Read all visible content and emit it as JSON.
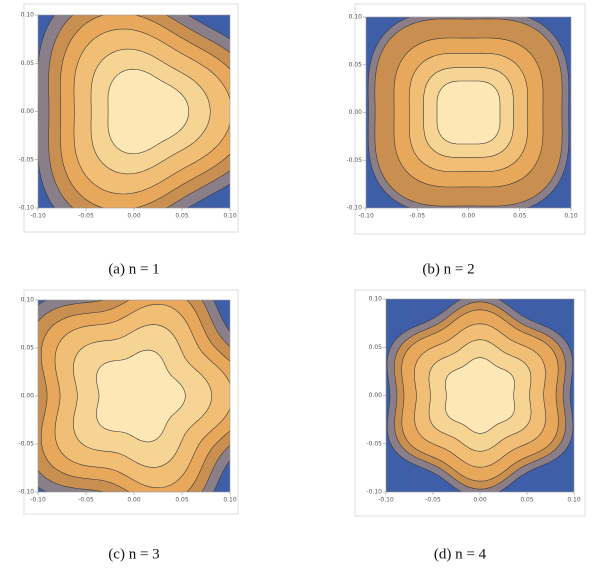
{
  "chart_data": [
    {
      "type": "contour",
      "caption": "(a) n = 1",
      "xlim": [
        -0.1,
        0.1
      ],
      "ylim": [
        -0.1,
        0.1
      ],
      "xticks": [
        {
          "value": -0.1,
          "label": "-0.10"
        },
        {
          "value": -0.05,
          "label": "-0.05"
        },
        {
          "value": 0,
          "label": "0.00"
        },
        {
          "value": 0.05,
          "label": "0.05"
        },
        {
          "value": 0.1,
          "label": "0.10"
        }
      ],
      "yticks": [
        {
          "value": -0.1,
          "label": "-0.10"
        },
        {
          "value": -0.05,
          "label": "-0.05"
        },
        {
          "value": 0,
          "label": "0.00"
        },
        {
          "value": 0.05,
          "label": "0.05"
        },
        {
          "value": 0.1,
          "label": "0.10"
        }
      ]
    },
    {
      "type": "contour",
      "caption": "(b) n = 2",
      "xlim": [
        -0.1,
        0.1
      ],
      "ylim": [
        -0.1,
        0.1
      ],
      "xticks": [
        {
          "value": -0.1,
          "label": "-0.10"
        },
        {
          "value": -0.05,
          "label": "-0.05"
        },
        {
          "value": 0,
          "label": "0.00"
        },
        {
          "value": 0.05,
          "label": "0.05"
        },
        {
          "value": 0.1,
          "label": "0.10"
        }
      ],
      "yticks": [
        {
          "value": -0.1,
          "label": "-0.10"
        },
        {
          "value": -0.05,
          "label": "-0.05"
        },
        {
          "value": 0,
          "label": "0.00"
        },
        {
          "value": 0.05,
          "label": "0.05"
        },
        {
          "value": 0.1,
          "label": "0.10"
        }
      ]
    },
    {
      "type": "contour",
      "caption": "(c) n = 3",
      "xlim": [
        -0.1,
        0.1
      ],
      "ylim": [
        -0.1,
        0.1
      ],
      "xticks": [
        {
          "value": -0.1,
          "label": "-0.10"
        },
        {
          "value": -0.05,
          "label": "-0.05"
        },
        {
          "value": 0,
          "label": "0.00"
        },
        {
          "value": 0.05,
          "label": "0.05"
        },
        {
          "value": 0.1,
          "label": "0.10"
        }
      ],
      "yticks": [
        {
          "value": -0.1,
          "label": "-0.10"
        },
        {
          "value": -0.05,
          "label": "-0.05"
        },
        {
          "value": 0,
          "label": "0.00"
        },
        {
          "value": 0.05,
          "label": "0.05"
        },
        {
          "value": 0.1,
          "label": "0.10"
        }
      ]
    },
    {
      "type": "contour",
      "caption": "(d) n = 4",
      "xlim": [
        -0.1,
        0.1
      ],
      "ylim": [
        -0.1,
        0.1
      ],
      "xticks": [
        {
          "value": -0.1,
          "label": "-0.10"
        },
        {
          "value": -0.05,
          "label": "-0.05"
        },
        {
          "value": 0,
          "label": "0.00"
        },
        {
          "value": 0.05,
          "label": "0.05"
        },
        {
          "value": 0.1,
          "label": "0.10"
        }
      ],
      "yticks": [
        {
          "value": -0.1,
          "label": "-0.10"
        },
        {
          "value": -0.05,
          "label": "-0.05"
        },
        {
          "value": 0,
          "label": "0.00"
        },
        {
          "value": 0.05,
          "label": "0.05"
        },
        {
          "value": 0.1,
          "label": "0.10"
        }
      ]
    }
  ]
}
